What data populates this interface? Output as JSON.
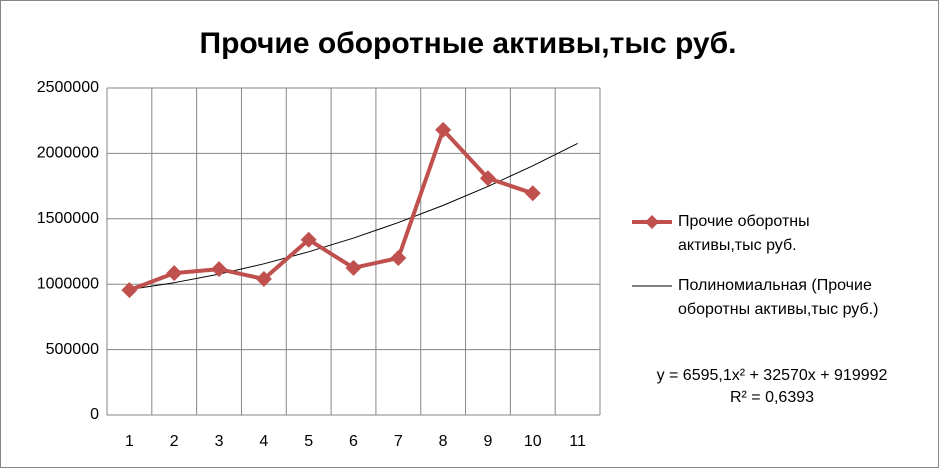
{
  "chart_data": {
    "type": "line",
    "title": "Прочие оборотные активы,тыс руб.",
    "categories": [
      "1",
      "2",
      "3",
      "4",
      "5",
      "6",
      "7",
      "8",
      "9",
      "10",
      "11"
    ],
    "series": [
      {
        "name": "Прочие оборотны активы,тыс руб.",
        "color": "#c0504d",
        "marker": "diamond",
        "values": [
          955000,
          1085000,
          1115000,
          1040000,
          1340000,
          1125000,
          1200000,
          2180000,
          1810000,
          1695000,
          null
        ]
      },
      {
        "name": "Полиномиальная (Прочие оборотны активы,тыс руб.)",
        "color": "#000000",
        "marker": "none",
        "values": [
          959157,
          1011512,
          1077058,
          1155794,
          1247720,
          1352836,
          1471142,
          1602638,
          1747325,
          1905202,
          2076269
        ]
      }
    ],
    "ylim": [
      0,
      2500000
    ],
    "yticks": [
      0,
      500000,
      1000000,
      1500000,
      2000000,
      2500000
    ],
    "grid": true,
    "legend": "right",
    "annotations": [
      "y = 6595,1x² + 32570x + 919992",
      "R² = 0,6393"
    ]
  }
}
